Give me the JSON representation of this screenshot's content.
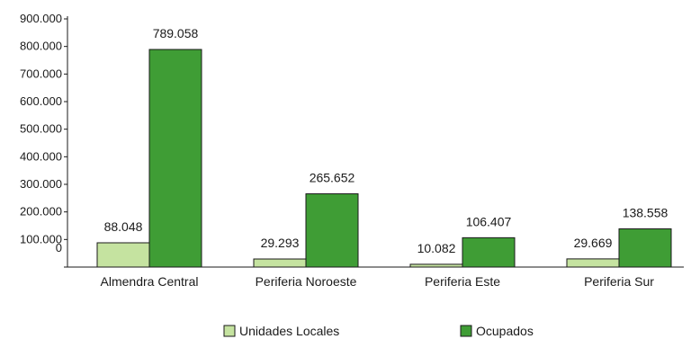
{
  "chart_data": {
    "type": "bar",
    "categories": [
      "Almendra Central",
      "Periferia Noroeste",
      "Periferia Este",
      "Periferia Sur"
    ],
    "series": [
      {
        "name": "Unidades Locales",
        "values": [
          88048,
          29293,
          10082,
          29669
        ],
        "labels": [
          "88.048",
          "29.293",
          "10.082",
          "29.669"
        ],
        "color": "#c5e3a0"
      },
      {
        "name": "Ocupados",
        "values": [
          789058,
          265652,
          106407,
          138558
        ],
        "labels": [
          "789.058",
          "265.652",
          "106.407",
          "138.558"
        ],
        "color": "#3f9d35"
      }
    ],
    "yticks": [
      {
        "value": 0,
        "label": "0"
      },
      {
        "value": 100000,
        "label": "100.000"
      },
      {
        "value": 200000,
        "label": "200.000"
      },
      {
        "value": 300000,
        "label": "300.000"
      },
      {
        "value": 400000,
        "label": "400.000"
      },
      {
        "value": 500000,
        "label": "500.000"
      },
      {
        "value": 600000,
        "label": "600.000"
      },
      {
        "value": 700000,
        "label": "700.000"
      },
      {
        "value": 800000,
        "label": "800.000"
      },
      {
        "value": 900000,
        "label": "900.000"
      }
    ],
    "ylim": [
      0,
      900000
    ],
    "grid": false,
    "legend_position": "bottom"
  }
}
